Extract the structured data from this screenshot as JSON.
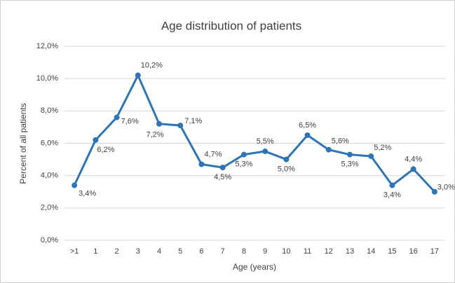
{
  "chart_data": {
    "type": "line",
    "title": "Age distribution of patients",
    "x_label": "Age (years)",
    "y_label": "Percent of all patients",
    "categories": [
      ">1",
      "1",
      "2",
      "3",
      "4",
      "5",
      "6",
      "7",
      "8",
      "9",
      "10",
      "11",
      "12",
      "13",
      "14",
      "15",
      "16",
      "17"
    ],
    "values": [
      3.4,
      6.2,
      7.6,
      10.2,
      7.2,
      7.1,
      4.7,
      4.5,
      5.3,
      5.5,
      5.0,
      6.5,
      5.6,
      5.3,
      5.2,
      3.4,
      4.4,
      3.0
    ],
    "value_labels": [
      "3,4%",
      "6,2%",
      "7,6%",
      "10,2%",
      "7,2%",
      "7,1%",
      "4,7%",
      "4,5%",
      "5,3%",
      "5,5%",
      "5,0%",
      "6,5%",
      "5,6%",
      "5,3%",
      "5,2%",
      "3,4%",
      "4,4%",
      "3,0%"
    ],
    "color": "#2e75b6",
    "ylim": [
      0,
      12
    ],
    "yticks": [
      {
        "value": 0,
        "label": "0,0%"
      },
      {
        "value": 2,
        "label": "2,0%"
      },
      {
        "value": 4,
        "label": "4,0%"
      },
      {
        "value": 6,
        "label": "6,0%"
      },
      {
        "value": 8,
        "label": "8,0%"
      },
      {
        "value": 10,
        "label": "10,0%"
      },
      {
        "value": 12,
        "label": "12,0%"
      }
    ],
    "grid": true
  }
}
